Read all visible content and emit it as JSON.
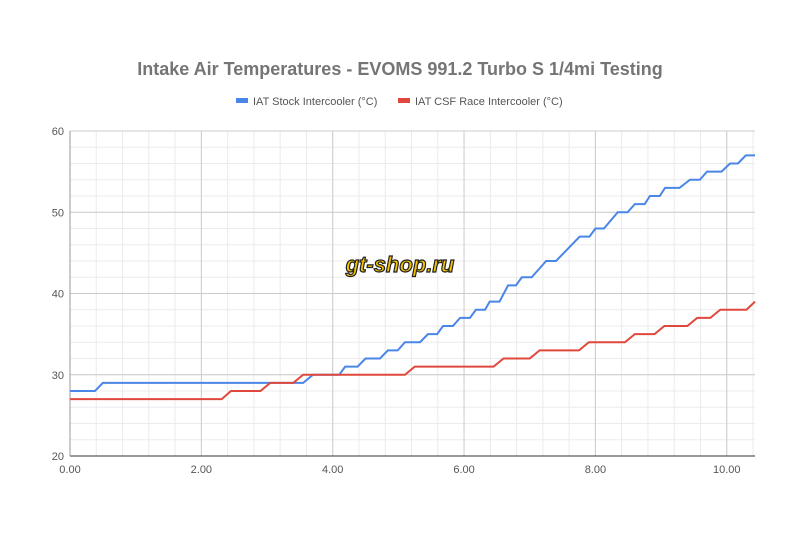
{
  "watermark": "gt-shop.ru",
  "colors": {
    "stock": "#4a86e8",
    "csf": "#e0483e",
    "grid_major": "#cccccc",
    "grid_minor": "#ebebeb"
  },
  "chart_data": {
    "type": "line",
    "title": "Intake Air Temperatures - EVOMS 991.2 Turbo S 1/4mi Testing",
    "xlabel": "",
    "ylabel": "",
    "xlim": [
      0,
      10.43
    ],
    "ylim": [
      20,
      60
    ],
    "xticks": [
      "0.00",
      "2.00",
      "4.00",
      "6.00",
      "8.00",
      "10.00"
    ],
    "xtick_values": [
      0,
      2,
      4,
      6,
      8,
      10
    ],
    "yticks": [
      "20",
      "30",
      "40",
      "50",
      "60"
    ],
    "ytick_values": [
      20,
      30,
      40,
      50,
      60
    ],
    "grid": true,
    "legend": "top",
    "series": [
      {
        "name": "IAT Stock Intercooler (°C)",
        "points": [
          [
            0,
            28
          ],
          [
            0.38,
            28
          ],
          [
            0.5,
            29
          ],
          [
            3.55,
            29
          ],
          [
            3.7,
            30
          ],
          [
            4.1,
            30
          ],
          [
            4.19,
            31
          ],
          [
            4.38,
            31
          ],
          [
            4.5,
            32
          ],
          [
            4.72,
            32
          ],
          [
            4.84,
            33
          ],
          [
            4.99,
            33
          ],
          [
            5.1,
            34
          ],
          [
            5.33,
            34
          ],
          [
            5.45,
            35
          ],
          [
            5.59,
            35
          ],
          [
            5.68,
            36
          ],
          [
            5.83,
            36
          ],
          [
            5.94,
            37
          ],
          [
            6.09,
            37
          ],
          [
            6.18,
            38
          ],
          [
            6.32,
            38
          ],
          [
            6.39,
            39
          ],
          [
            6.54,
            39
          ],
          [
            6.67,
            41
          ],
          [
            6.79,
            41
          ],
          [
            6.88,
            42
          ],
          [
            7.03,
            42
          ],
          [
            7.25,
            44
          ],
          [
            7.4,
            44
          ],
          [
            7.76,
            47
          ],
          [
            7.91,
            47
          ],
          [
            8.0,
            48
          ],
          [
            8.13,
            48
          ],
          [
            8.34,
            50
          ],
          [
            8.49,
            50
          ],
          [
            8.6,
            51
          ],
          [
            8.75,
            51
          ],
          [
            8.83,
            52
          ],
          [
            8.98,
            52
          ],
          [
            9.06,
            53
          ],
          [
            9.28,
            53
          ],
          [
            9.44,
            54
          ],
          [
            9.59,
            54
          ],
          [
            9.7,
            55
          ],
          [
            9.92,
            55
          ],
          [
            10.05,
            56
          ],
          [
            10.17,
            56
          ],
          [
            10.29,
            57
          ],
          [
            10.43,
            57
          ]
        ]
      },
      {
        "name": "IAT CSF Race Intercooler (°C)",
        "points": [
          [
            0,
            27
          ],
          [
            2.31,
            27
          ],
          [
            2.45,
            28
          ],
          [
            2.9,
            28
          ],
          [
            3.05,
            29
          ],
          [
            3.4,
            29
          ],
          [
            3.55,
            30
          ],
          [
            5.1,
            30
          ],
          [
            5.25,
            31
          ],
          [
            6.45,
            31
          ],
          [
            6.6,
            32
          ],
          [
            7.0,
            32
          ],
          [
            7.15,
            33
          ],
          [
            7.75,
            33
          ],
          [
            7.9,
            34
          ],
          [
            8.45,
            34
          ],
          [
            8.6,
            35
          ],
          [
            8.9,
            35
          ],
          [
            9.05,
            36
          ],
          [
            9.4,
            36
          ],
          [
            9.55,
            37
          ],
          [
            9.75,
            37
          ],
          [
            9.9,
            38
          ],
          [
            10.3,
            38
          ],
          [
            10.43,
            39
          ]
        ]
      }
    ]
  }
}
